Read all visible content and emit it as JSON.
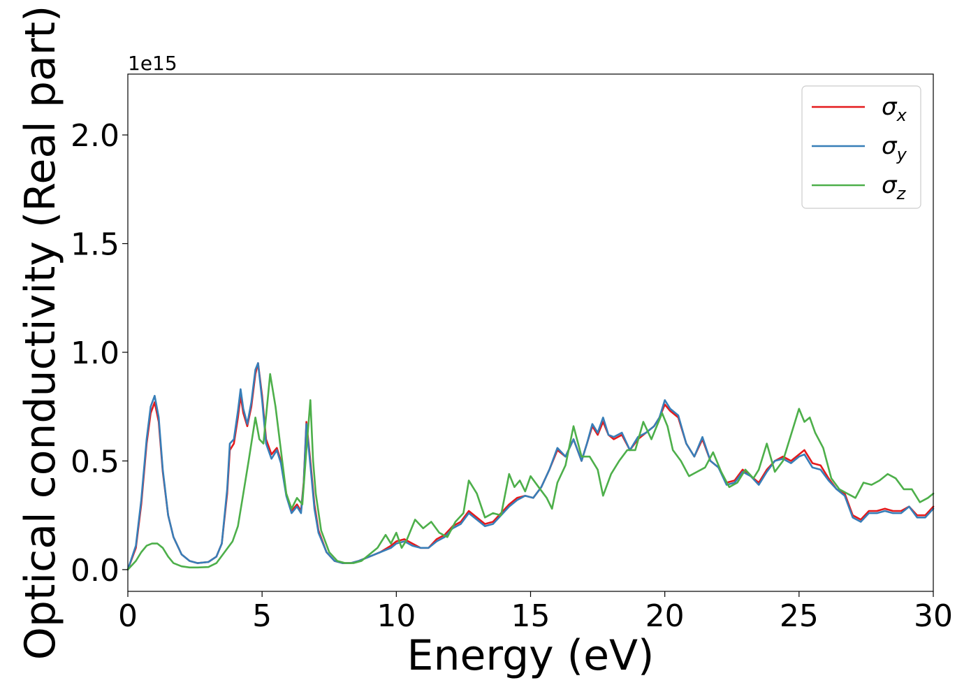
{
  "chart_data": {
    "type": "line",
    "xlabel": "Energy (eV)",
    "ylabel": "Optical conductivity (Real part)",
    "y_offset_label": "1e15",
    "xlim": [
      0,
      30
    ],
    "ylim": [
      -0.1,
      2.28
    ],
    "x_ticks": [
      0,
      5,
      10,
      15,
      20,
      25,
      30
    ],
    "y_ticks": [
      0.0,
      0.5,
      1.0,
      1.5,
      2.0
    ],
    "x_tick_labels": [
      "0",
      "5",
      "10",
      "15",
      "20",
      "25",
      "30"
    ],
    "y_tick_labels": [
      "0.0",
      "0.5",
      "1.0",
      "1.5",
      "2.0"
    ],
    "grid": false,
    "legend_position": "top-right",
    "series": [
      {
        "name": "σx",
        "name_base": "σ",
        "name_sub": "x",
        "color": "#e41a1c",
        "x": [
          0,
          0.3,
          0.5,
          0.7,
          0.85,
          1.0,
          1.15,
          1.3,
          1.5,
          1.7,
          2.0,
          2.3,
          2.6,
          3.0,
          3.3,
          3.5,
          3.7,
          3.8,
          3.95,
          4.1,
          4.2,
          4.3,
          4.45,
          4.6,
          4.75,
          4.85,
          5.0,
          5.15,
          5.35,
          5.55,
          5.7,
          5.9,
          6.1,
          6.3,
          6.45,
          6.55,
          6.65,
          6.8,
          6.95,
          7.1,
          7.4,
          7.7,
          8.0,
          8.3,
          8.6,
          9.0,
          9.4,
          9.8,
          10.0,
          10.3,
          10.6,
          10.9,
          11.2,
          11.5,
          11.8,
          12.1,
          12.4,
          12.7,
          13.0,
          13.3,
          13.6,
          13.9,
          14.2,
          14.5,
          14.8,
          15.1,
          15.4,
          15.7,
          16.0,
          16.3,
          16.6,
          16.9,
          17.1,
          17.3,
          17.5,
          17.7,
          17.9,
          18.1,
          18.4,
          18.7,
          19.0,
          19.3,
          19.6,
          19.8,
          20.0,
          20.2,
          20.5,
          20.8,
          21.1,
          21.4,
          21.7,
          22.0,
          22.3,
          22.6,
          22.9,
          23.2,
          23.5,
          23.8,
          24.1,
          24.4,
          24.7,
          25.0,
          25.2,
          25.5,
          25.8,
          26.1,
          26.4,
          26.7,
          27.0,
          27.3,
          27.6,
          27.9,
          28.2,
          28.5,
          28.8,
          29.1,
          29.4,
          29.7,
          30.0
        ],
        "values": [
          0.0,
          0.1,
          0.3,
          0.58,
          0.72,
          0.77,
          0.68,
          0.45,
          0.25,
          0.15,
          0.07,
          0.04,
          0.03,
          0.035,
          0.06,
          0.12,
          0.35,
          0.55,
          0.58,
          0.7,
          0.8,
          0.72,
          0.66,
          0.75,
          0.9,
          0.95,
          0.8,
          0.6,
          0.53,
          0.56,
          0.5,
          0.35,
          0.27,
          0.3,
          0.27,
          0.4,
          0.68,
          0.5,
          0.3,
          0.18,
          0.08,
          0.04,
          0.03,
          0.03,
          0.04,
          0.06,
          0.08,
          0.11,
          0.13,
          0.14,
          0.12,
          0.1,
          0.1,
          0.14,
          0.16,
          0.2,
          0.22,
          0.27,
          0.24,
          0.21,
          0.22,
          0.26,
          0.3,
          0.33,
          0.34,
          0.33,
          0.38,
          0.46,
          0.55,
          0.52,
          0.6,
          0.5,
          0.58,
          0.66,
          0.62,
          0.68,
          0.62,
          0.6,
          0.62,
          0.55,
          0.6,
          0.63,
          0.66,
          0.7,
          0.76,
          0.73,
          0.7,
          0.58,
          0.52,
          0.6,
          0.5,
          0.47,
          0.4,
          0.41,
          0.46,
          0.43,
          0.4,
          0.46,
          0.5,
          0.52,
          0.5,
          0.53,
          0.55,
          0.49,
          0.48,
          0.42,
          0.37,
          0.35,
          0.25,
          0.23,
          0.27,
          0.27,
          0.28,
          0.27,
          0.27,
          0.29,
          0.25,
          0.25,
          0.29
        ]
      },
      {
        "name": "σy",
        "name_base": "σ",
        "name_sub": "y",
        "color": "#377eb8",
        "x": [
          0,
          0.3,
          0.5,
          0.7,
          0.85,
          1.0,
          1.15,
          1.3,
          1.5,
          1.7,
          2.0,
          2.3,
          2.6,
          3.0,
          3.3,
          3.5,
          3.7,
          3.8,
          3.95,
          4.1,
          4.2,
          4.3,
          4.45,
          4.6,
          4.75,
          4.85,
          5.0,
          5.15,
          5.35,
          5.55,
          5.7,
          5.9,
          6.1,
          6.3,
          6.45,
          6.55,
          6.65,
          6.8,
          6.95,
          7.1,
          7.4,
          7.7,
          8.0,
          8.3,
          8.6,
          9.0,
          9.4,
          9.8,
          10.0,
          10.3,
          10.6,
          10.9,
          11.2,
          11.5,
          11.8,
          12.1,
          12.4,
          12.7,
          13.0,
          13.3,
          13.6,
          13.9,
          14.2,
          14.5,
          14.8,
          15.1,
          15.4,
          15.7,
          16.0,
          16.3,
          16.6,
          16.9,
          17.1,
          17.3,
          17.5,
          17.7,
          17.9,
          18.1,
          18.4,
          18.7,
          19.0,
          19.3,
          19.6,
          19.8,
          20.0,
          20.2,
          20.5,
          20.8,
          21.1,
          21.4,
          21.7,
          22.0,
          22.3,
          22.6,
          22.9,
          23.2,
          23.5,
          23.8,
          24.1,
          24.4,
          24.7,
          25.0,
          25.2,
          25.5,
          25.8,
          26.1,
          26.4,
          26.7,
          27.0,
          27.3,
          27.6,
          27.9,
          28.2,
          28.5,
          28.8,
          29.1,
          29.4,
          29.7,
          30.0
        ],
        "values": [
          0.0,
          0.11,
          0.32,
          0.6,
          0.75,
          0.8,
          0.7,
          0.46,
          0.25,
          0.15,
          0.07,
          0.04,
          0.03,
          0.035,
          0.06,
          0.12,
          0.37,
          0.58,
          0.6,
          0.73,
          0.83,
          0.74,
          0.67,
          0.77,
          0.92,
          0.95,
          0.78,
          0.58,
          0.51,
          0.55,
          0.49,
          0.34,
          0.26,
          0.29,
          0.26,
          0.39,
          0.67,
          0.48,
          0.28,
          0.17,
          0.08,
          0.04,
          0.03,
          0.03,
          0.04,
          0.06,
          0.08,
          0.1,
          0.12,
          0.13,
          0.11,
          0.1,
          0.1,
          0.13,
          0.15,
          0.19,
          0.21,
          0.26,
          0.23,
          0.2,
          0.21,
          0.25,
          0.29,
          0.32,
          0.34,
          0.33,
          0.38,
          0.46,
          0.56,
          0.52,
          0.6,
          0.5,
          0.58,
          0.67,
          0.63,
          0.7,
          0.62,
          0.61,
          0.63,
          0.55,
          0.61,
          0.63,
          0.66,
          0.7,
          0.78,
          0.74,
          0.71,
          0.58,
          0.52,
          0.61,
          0.5,
          0.47,
          0.39,
          0.4,
          0.45,
          0.43,
          0.39,
          0.45,
          0.5,
          0.51,
          0.49,
          0.52,
          0.53,
          0.47,
          0.46,
          0.41,
          0.37,
          0.34,
          0.24,
          0.22,
          0.26,
          0.26,
          0.27,
          0.26,
          0.26,
          0.29,
          0.24,
          0.24,
          0.28
        ]
      },
      {
        "name": "σz",
        "name_base": "σ",
        "name_sub": "z",
        "color": "#4daf4a",
        "x": [
          0,
          0.3,
          0.5,
          0.7,
          0.9,
          1.1,
          1.3,
          1.5,
          1.7,
          2.0,
          2.3,
          2.6,
          3.0,
          3.3,
          3.6,
          3.9,
          4.1,
          4.3,
          4.5,
          4.75,
          4.9,
          5.05,
          5.3,
          5.5,
          5.7,
          5.9,
          6.1,
          6.3,
          6.5,
          6.65,
          6.8,
          6.9,
          7.0,
          7.2,
          7.5,
          7.8,
          8.1,
          8.4,
          8.7,
          9.0,
          9.3,
          9.6,
          9.8,
          10.0,
          10.2,
          10.4,
          10.7,
          11.0,
          11.3,
          11.6,
          11.9,
          12.2,
          12.5,
          12.7,
          13.0,
          13.3,
          13.6,
          13.9,
          14.2,
          14.4,
          14.6,
          14.8,
          15.0,
          15.3,
          15.6,
          15.8,
          16.0,
          16.3,
          16.6,
          16.9,
          17.2,
          17.5,
          17.7,
          18.0,
          18.3,
          18.6,
          18.9,
          19.2,
          19.5,
          19.7,
          19.9,
          20.1,
          20.3,
          20.6,
          20.9,
          21.2,
          21.5,
          21.8,
          22.1,
          22.4,
          22.7,
          23.0,
          23.3,
          23.5,
          23.8,
          24.1,
          24.4,
          24.7,
          25.0,
          25.2,
          25.4,
          25.6,
          25.9,
          26.2,
          26.5,
          26.8,
          27.1,
          27.4,
          27.7,
          28.0,
          28.3,
          28.6,
          28.9,
          29.2,
          29.5,
          29.8,
          30.0
        ],
        "values": [
          0.0,
          0.04,
          0.08,
          0.11,
          0.12,
          0.12,
          0.1,
          0.06,
          0.03,
          0.015,
          0.01,
          0.01,
          0.012,
          0.03,
          0.08,
          0.13,
          0.2,
          0.35,
          0.5,
          0.7,
          0.6,
          0.58,
          0.9,
          0.75,
          0.55,
          0.35,
          0.28,
          0.33,
          0.3,
          0.55,
          0.78,
          0.5,
          0.35,
          0.18,
          0.08,
          0.04,
          0.03,
          0.03,
          0.04,
          0.07,
          0.1,
          0.16,
          0.12,
          0.17,
          0.1,
          0.14,
          0.23,
          0.19,
          0.22,
          0.17,
          0.15,
          0.22,
          0.26,
          0.41,
          0.35,
          0.24,
          0.26,
          0.25,
          0.44,
          0.38,
          0.41,
          0.36,
          0.43,
          0.38,
          0.33,
          0.28,
          0.4,
          0.48,
          0.66,
          0.52,
          0.52,
          0.46,
          0.34,
          0.44,
          0.5,
          0.55,
          0.55,
          0.68,
          0.6,
          0.66,
          0.72,
          0.66,
          0.55,
          0.5,
          0.43,
          0.45,
          0.47,
          0.54,
          0.45,
          0.38,
          0.4,
          0.46,
          0.42,
          0.46,
          0.58,
          0.45,
          0.5,
          0.62,
          0.74,
          0.68,
          0.7,
          0.63,
          0.56,
          0.42,
          0.37,
          0.35,
          0.33,
          0.4,
          0.39,
          0.41,
          0.44,
          0.42,
          0.37,
          0.37,
          0.31,
          0.33,
          0.35
        ]
      }
    ]
  }
}
